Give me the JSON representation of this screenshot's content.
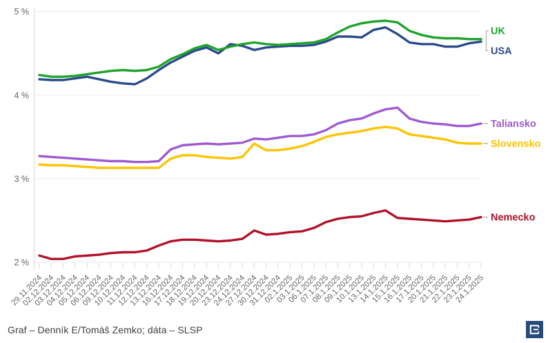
{
  "chart_data": {
    "type": "line",
    "title": "",
    "xlabel": "",
    "ylabel": "",
    "unit": "%",
    "grid": "horizontal",
    "legend_position": "right-at-line-end",
    "ylim": [
      2,
      5
    ],
    "yticks": [
      5,
      4,
      3,
      2
    ],
    "ytick_labels": [
      "5 %",
      "4 %",
      "3 %",
      "2 %"
    ],
    "x": [
      "29.11.2024",
      "02.12.2024",
      "03.12.2024",
      "04.12.2024",
      "05.12.2024",
      "06.12.2024",
      "09.12.2024",
      "10.12.2024",
      "11.12.2024",
      "12.12.2024",
      "13.12.2024",
      "16.12.2024",
      "17.12.2024",
      "18.12.2024",
      "19.12.2024",
      "20.12.2024",
      "23.12.2024",
      "24.12.2024",
      "27.12.2024",
      "30.12.2024",
      "31.12.2024",
      "02.1.2025",
      "03.1.2025",
      "06.1.2025",
      "07.1.2025",
      "08.1.2025",
      "09.1.2025",
      "10.1.2025",
      "13.1.2025",
      "14.1.2025",
      "15.1.2025",
      "16.1.2025",
      "17.1.2025",
      "20.1.2025",
      "21.1.2025",
      "22.1.2025",
      "23.1.2025",
      "24.1.2025"
    ],
    "series": [
      {
        "name": "UK",
        "color": "#1ea32b",
        "values": [
          4.24,
          4.22,
          4.22,
          4.23,
          4.25,
          4.27,
          4.29,
          4.3,
          4.29,
          4.3,
          4.34,
          4.43,
          4.49,
          4.56,
          4.6,
          4.54,
          4.58,
          4.61,
          4.63,
          4.61,
          4.6,
          4.61,
          4.62,
          4.63,
          4.67,
          4.75,
          4.82,
          4.86,
          4.88,
          4.89,
          4.87,
          4.77,
          4.72,
          4.69,
          4.68,
          4.68,
          4.67,
          4.67
        ]
      },
      {
        "name": "USA",
        "color": "#2b4a8c",
        "values": [
          4.19,
          4.18,
          4.18,
          4.2,
          4.22,
          4.19,
          4.16,
          4.14,
          4.13,
          4.2,
          4.3,
          4.39,
          4.46,
          4.53,
          4.57,
          4.5,
          4.61,
          4.59,
          4.54,
          4.57,
          4.58,
          4.59,
          4.59,
          4.6,
          4.64,
          4.7,
          4.7,
          4.69,
          4.78,
          4.81,
          4.73,
          4.63,
          4.61,
          4.61,
          4.58,
          4.58,
          4.62,
          4.64
        ]
      },
      {
        "name": "Taliansko",
        "color": "#9d5bd2",
        "values": [
          3.27,
          3.26,
          3.25,
          3.24,
          3.23,
          3.22,
          3.21,
          3.21,
          3.2,
          3.2,
          3.21,
          3.35,
          3.4,
          3.41,
          3.42,
          3.41,
          3.42,
          3.43,
          3.48,
          3.47,
          3.49,
          3.51,
          3.51,
          3.53,
          3.58,
          3.66,
          3.7,
          3.72,
          3.78,
          3.83,
          3.85,
          3.72,
          3.68,
          3.66,
          3.65,
          3.63,
          3.63,
          3.66
        ]
      },
      {
        "name": "Slovensko",
        "color": "#fdc400",
        "values": [
          3.17,
          3.16,
          3.16,
          3.15,
          3.14,
          3.13,
          3.13,
          3.13,
          3.13,
          3.13,
          3.13,
          3.24,
          3.28,
          3.28,
          3.26,
          3.25,
          3.24,
          3.26,
          3.42,
          3.34,
          3.34,
          3.36,
          3.39,
          3.44,
          3.5,
          3.53,
          3.55,
          3.57,
          3.6,
          3.62,
          3.6,
          3.53,
          3.51,
          3.49,
          3.47,
          3.43,
          3.42,
          3.42
        ]
      },
      {
        "name": "Nemecko",
        "color": "#b01229",
        "values": [
          2.08,
          2.04,
          2.04,
          2.07,
          2.08,
          2.09,
          2.11,
          2.12,
          2.12,
          2.14,
          2.2,
          2.25,
          2.27,
          2.27,
          2.26,
          2.25,
          2.26,
          2.28,
          2.38,
          2.33,
          2.34,
          2.36,
          2.37,
          2.41,
          2.48,
          2.52,
          2.54,
          2.55,
          2.59,
          2.62,
          2.53,
          2.52,
          2.51,
          2.5,
          2.49,
          2.5,
          2.51,
          2.54
        ]
      }
    ]
  },
  "footer": {
    "caption": "Graf – Denník E/Tomáš Zemko; dáta – SLSP",
    "logo": "dennik-e-logo"
  },
  "colors": {
    "grid": "#e9e9e9",
    "axis": "#d9d9d9",
    "tick_label": "#666666",
    "legend_mark": "#b5b5b5",
    "logo_bg": "#274b7a"
  }
}
